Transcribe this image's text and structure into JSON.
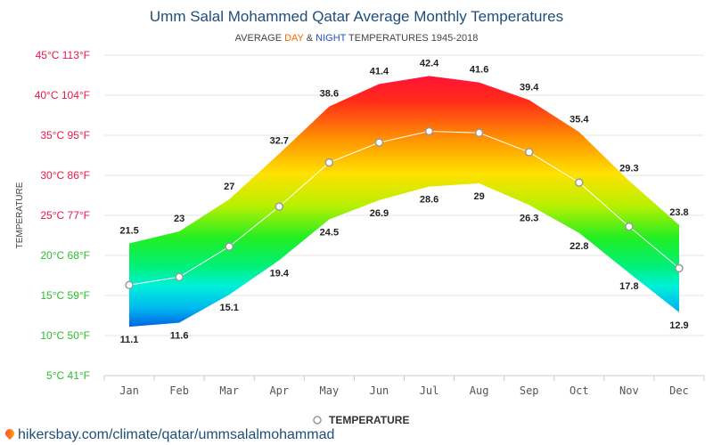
{
  "chart_data": {
    "type": "area",
    "title": "Umm Salal Mohammed Qatar Average Monthly Temperatures",
    "subtitle": {
      "prefix": "AVERAGE ",
      "day": "DAY",
      "amp": " & ",
      "night": "NIGHT",
      "suffix": " TEMPERATURES 1945-2018"
    },
    "ylabel": "TEMPERATURE",
    "categories": [
      "Jan",
      "Feb",
      "Mar",
      "Apr",
      "May",
      "Jun",
      "Jul",
      "Aug",
      "Sep",
      "Oct",
      "Nov",
      "Dec"
    ],
    "yticks": [
      {
        "value": 5,
        "label": "5°C 41°F"
      },
      {
        "value": 10,
        "label": "10°C 50°F"
      },
      {
        "value": 15,
        "label": "15°C 59°F"
      },
      {
        "value": 20,
        "label": "20°C 68°F"
      },
      {
        "value": 25,
        "label": "25°C 77°F"
      },
      {
        "value": 30,
        "label": "30°C 86°F"
      },
      {
        "value": 35,
        "label": "35°C 95°F"
      },
      {
        "value": 40,
        "label": "40°C 104°F"
      },
      {
        "value": 45,
        "label": "45°C 113°F"
      }
    ],
    "ylim": [
      5,
      45
    ],
    "series": [
      {
        "key": "day",
        "values": [
          21.5,
          23,
          27,
          32.7,
          38.6,
          41.4,
          42.4,
          41.6,
          39.4,
          35.4,
          29.3,
          23.8
        ]
      },
      {
        "key": "night",
        "values": [
          11.1,
          11.6,
          15.1,
          19.4,
          24.5,
          26.9,
          28.6,
          29,
          26.3,
          22.8,
          17.8,
          12.9
        ]
      },
      {
        "name": "TEMPERATURE",
        "key": "average",
        "values": [
          16.3,
          17.3,
          21.1,
          26.1,
          31.6,
          34.1,
          35.5,
          35.3,
          32.9,
          29.1,
          23.6,
          18.4
        ]
      }
    ],
    "legend": {
      "label": "TEMPERATURE",
      "position": "bottom-center"
    },
    "grid": true,
    "colors": {
      "title": "#1f4e79",
      "day": "#ff6600",
      "night": "#1f4fc4",
      "average_line": "#ffffff",
      "marker_fill": "#ffffff",
      "marker_stroke": "#999999",
      "ytick_hot": "#e8174a",
      "ytick_mild": "#2ebd2e",
      "grid": "#e6e6e6"
    }
  },
  "footer": {
    "icon": "location-pin-icon",
    "text": "hikersbay.com/climate/qatar/ummsalalmohammad"
  }
}
